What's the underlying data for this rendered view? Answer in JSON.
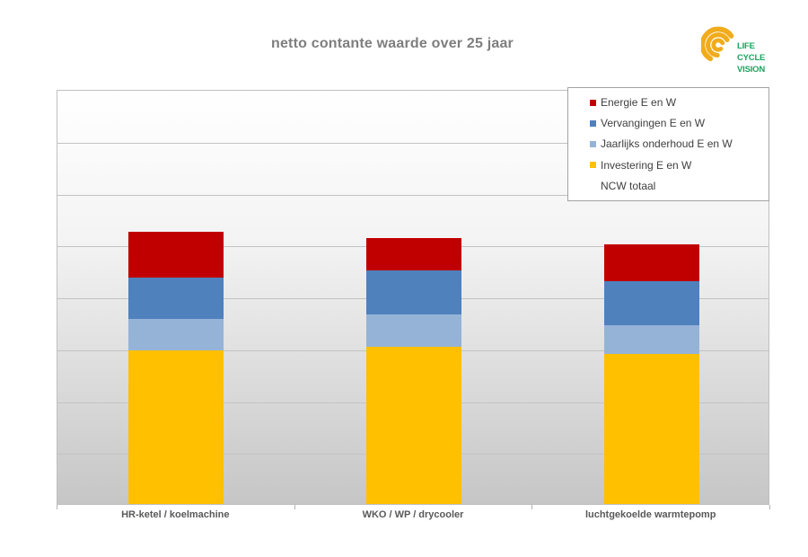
{
  "title": {
    "text": "netto contante waarde over 25 jaar",
    "color": "#7e7e7e"
  },
  "logo": {
    "lines": [
      "LIFE",
      "CYCLE",
      "VISION"
    ],
    "text_color": "#1ba45e",
    "arc_color": "#f0ac1c"
  },
  "chart_data": {
    "type": "bar",
    "stacked": true,
    "title": "netto contante waarde over 25 jaar",
    "xlabel": "",
    "ylabel": "",
    "y_axis_labels_visible": false,
    "ylim": [
      0,
      8
    ],
    "grid_intervals": 8,
    "grid_on": true,
    "categories": [
      "HR-ketel / koelmachine",
      "WKO / WP / drycooler",
      "luchtgekoelde warmtepomp"
    ],
    "series": [
      {
        "name": "Investering E en W",
        "color": "#FFC000",
        "values": [
          2.97,
          3.03,
          2.89
        ]
      },
      {
        "name": "Jaarlijks onderhoud E en W",
        "color": "#95B3D7",
        "values": [
          0.59,
          0.63,
          0.56
        ]
      },
      {
        "name": "Vervangingen E en W",
        "color": "#4F81BD",
        "values": [
          0.81,
          0.84,
          0.84
        ]
      },
      {
        "name": "Energie E en W",
        "color": "#C00000",
        "values": [
          0.88,
          0.62,
          0.71
        ]
      }
    ],
    "stack_totals": [
      5.25,
      5.12,
      5.0
    ],
    "legend": {
      "position": "top-right",
      "entries": [
        {
          "label": "Energie E en W",
          "color": "#C00000"
        },
        {
          "label": "Vervangingen E en W",
          "color": "#4F81BD"
        },
        {
          "label": "Jaarlijks onderhoud E en W",
          "color": "#95B3D7"
        },
        {
          "label": "Investering E en W",
          "color": "#FFC000"
        },
        {
          "label": "NCW totaal",
          "color": null
        }
      ]
    },
    "colors": {
      "plot_bg_top": "#ffffff",
      "plot_bg_bottom": "#c6c6c6",
      "gridline": "#c3c3c3",
      "plot_border": "#bfbfbf"
    }
  }
}
